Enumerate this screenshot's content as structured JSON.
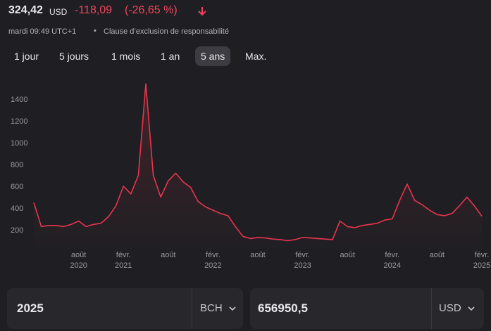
{
  "header": {
    "price": "324,42",
    "currency": "USD",
    "change": "-118,09",
    "change_pct": "(-26,65 %)",
    "time": "mardi 09:49 UTC+1",
    "separator": "•",
    "disclaimer": "Clause d’exclusion de responsabilité"
  },
  "ranges": {
    "items": [
      "1 jour",
      "5 jours",
      "1 mois",
      "1 an",
      "5 ans",
      "Max."
    ],
    "selected": 4
  },
  "chart_data": {
    "type": "line",
    "color": "#e8344e",
    "categories": [
      "2020-02",
      "2020-03",
      "2020-04",
      "2020-05",
      "2020-06",
      "2020-07",
      "2020-08",
      "2020-09",
      "2020-10",
      "2020-11",
      "2020-12",
      "2021-01",
      "2021-02",
      "2021-03",
      "2021-04",
      "2021-05",
      "2021-06",
      "2021-07",
      "2021-08",
      "2021-09",
      "2021-10",
      "2021-11",
      "2021-12",
      "2022-01",
      "2022-02",
      "2022-03",
      "2022-04",
      "2022-05",
      "2022-06",
      "2022-07",
      "2022-08",
      "2022-09",
      "2022-10",
      "2022-11",
      "2022-12",
      "2023-01",
      "2023-02",
      "2023-03",
      "2023-04",
      "2023-05",
      "2023-06",
      "2023-07",
      "2023-08",
      "2023-09",
      "2023-10",
      "2023-11",
      "2023-12",
      "2024-01",
      "2024-02",
      "2024-03",
      "2024-04",
      "2024-05",
      "2024-06",
      "2024-07",
      "2024-08",
      "2024-09",
      "2024-10",
      "2024-11",
      "2024-12",
      "2025-01",
      "2025-02"
    ],
    "values": [
      450,
      230,
      240,
      240,
      230,
      250,
      280,
      230,
      250,
      260,
      320,
      420,
      600,
      530,
      700,
      1540,
      700,
      500,
      650,
      720,
      640,
      590,
      460,
      410,
      380,
      350,
      330,
      230,
      140,
      120,
      130,
      125,
      115,
      110,
      100,
      110,
      130,
      125,
      120,
      115,
      110,
      280,
      230,
      220,
      240,
      250,
      260,
      290,
      300,
      470,
      620,
      470,
      430,
      380,
      340,
      330,
      350,
      420,
      500,
      420,
      324.42
    ],
    "ylim": [
      0,
      1600
    ],
    "yticks": [
      200,
      400,
      600,
      800,
      1000,
      1200,
      1400
    ],
    "xticks": [
      {
        "value": "2020-08",
        "label": [
          "août",
          "2020"
        ]
      },
      {
        "value": "2021-02",
        "label": [
          "févr.",
          "2021"
        ]
      },
      {
        "value": "2021-08",
        "label": [
          "août",
          null
        ]
      },
      {
        "value": "2022-02",
        "label": [
          "févr.",
          "2022"
        ]
      },
      {
        "value": "2022-08",
        "label": [
          "août",
          null
        ]
      },
      {
        "value": "2023-02",
        "label": [
          "févr.",
          "2023"
        ]
      },
      {
        "value": "2023-08",
        "label": [
          "août",
          null
        ]
      },
      {
        "value": "2024-02",
        "label": [
          "févr.",
          "2024"
        ]
      },
      {
        "value": "2024-08",
        "label": [
          "août",
          null
        ]
      },
      {
        "value": "2025-02",
        "label": [
          "févr.",
          "2025"
        ]
      }
    ]
  },
  "converter": {
    "left": {
      "amount": "2025",
      "unit": "BCH"
    },
    "right": {
      "amount": "656950,5",
      "unit": "USD"
    }
  }
}
